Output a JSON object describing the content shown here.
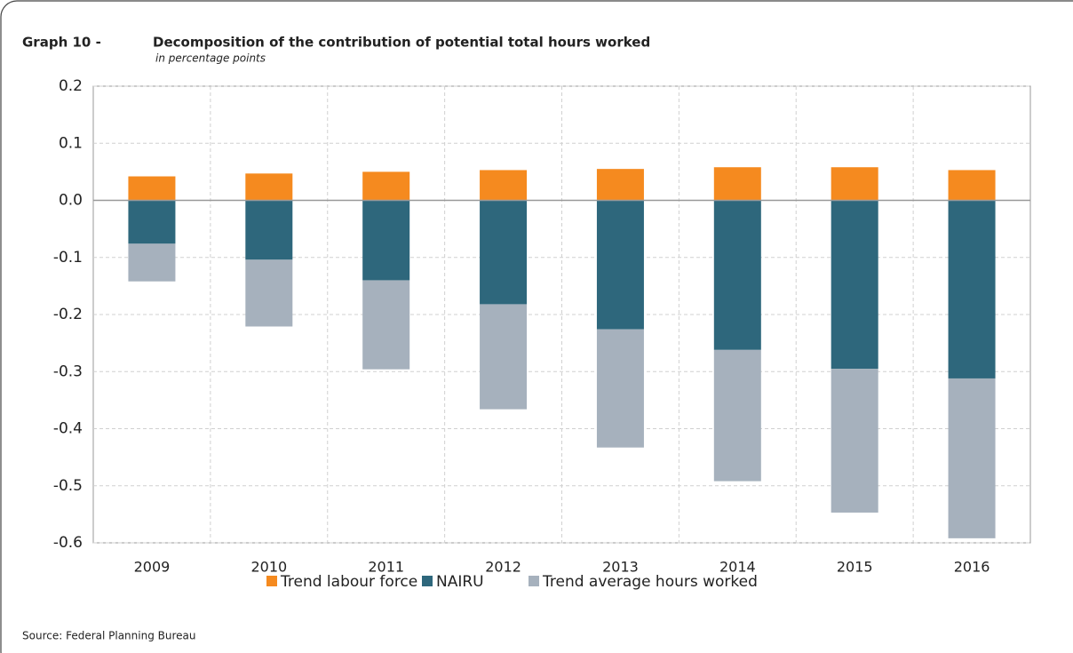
{
  "chart_data": {
    "type": "bar",
    "stacked": true,
    "graph_label": "Graph 10 -",
    "title": "Decomposition of the contribution of potential total hours worked",
    "subtitle": "in percentage points",
    "source": "Source: Federal Planning Bureau",
    "categories": [
      "2009",
      "2010",
      "2011",
      "2012",
      "2013",
      "2014",
      "2015",
      "2016"
    ],
    "series": [
      {
        "name": "Trend labour force",
        "color": "#f58a1f",
        "values": [
          0.042,
          0.047,
          0.05,
          0.053,
          0.055,
          0.058,
          0.058,
          0.053
        ]
      },
      {
        "name": "NAIRU",
        "color": "#2e677c",
        "values": [
          -0.076,
          -0.104,
          -0.14,
          -0.182,
          -0.226,
          -0.262,
          -0.295,
          -0.312
        ]
      },
      {
        "name": "Trend average hours worked",
        "color": "#a6b1bd",
        "values": [
          -0.066,
          -0.117,
          -0.156,
          -0.184,
          -0.207,
          -0.23,
          -0.252,
          -0.28
        ]
      }
    ],
    "ylim": [
      -0.6,
      0.2
    ],
    "yticks": [
      0.2,
      0.1,
      {
        "value": 0,
        "label": "0.0"
      },
      -0.1,
      -0.2,
      -0.3,
      -0.4,
      -0.5,
      -0.6
    ],
    "grid": true,
    "legend": "bottom"
  }
}
